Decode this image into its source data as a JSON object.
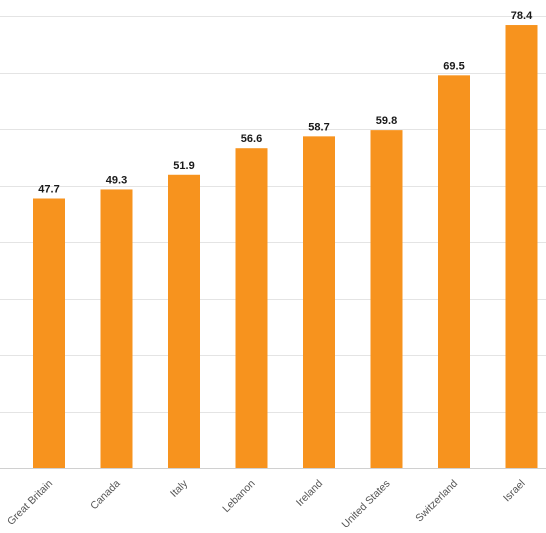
{
  "chart_data": {
    "type": "bar",
    "categories": [
      "Great Britain",
      "Canada",
      "Italy",
      "Lebanon",
      "Ireland",
      "United States",
      "Switzerland",
      "Israel"
    ],
    "values": [
      47.7,
      49.3,
      51.9,
      56.6,
      58.7,
      59.8,
      69.5,
      78.4
    ],
    "value_labels": [
      "47.7",
      "49.3",
      "51.9",
      "56.6",
      "58.7",
      "59.8",
      "69.5",
      "78.4"
    ],
    "title": "",
    "xlabel": "",
    "ylabel": "",
    "ylim": [
      0,
      80
    ],
    "grid": true,
    "legend": "none",
    "colors": {
      "bar": "#f7931e",
      "grid": "#e4e4e4",
      "value_text": "#1a1a1a",
      "category_text": "#555555"
    }
  }
}
